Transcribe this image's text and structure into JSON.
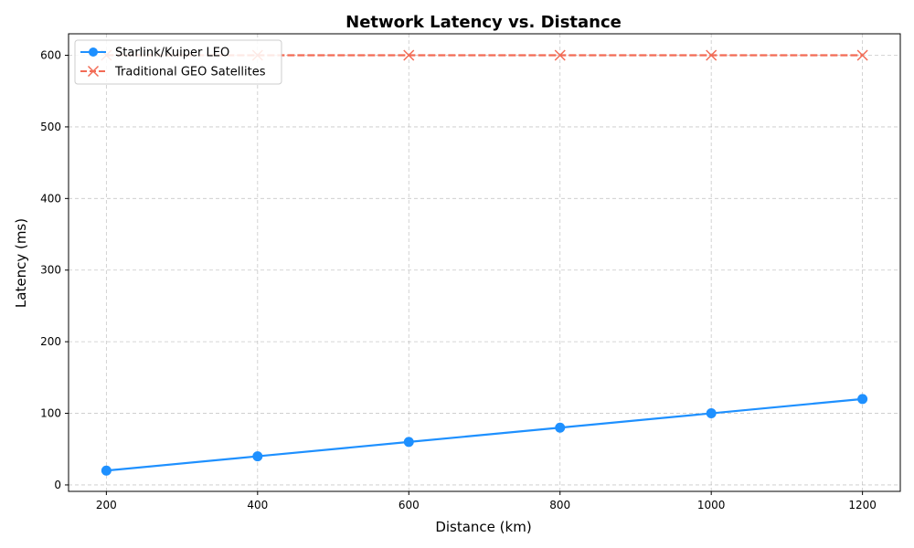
{
  "chart_data": {
    "type": "line",
    "title": "Network Latency vs. Distance",
    "xlabel": "Distance (km)",
    "ylabel": "Latency (ms)",
    "x": [
      200,
      400,
      600,
      800,
      1000,
      1200
    ],
    "xlim": [
      150,
      1250
    ],
    "ylim": [
      -9,
      630
    ],
    "xticks": [
      200,
      400,
      600,
      800,
      1000,
      1200
    ],
    "yticks": [
      0,
      100,
      200,
      300,
      400,
      500,
      600
    ],
    "grid": true,
    "legend_position": "top-left",
    "series": [
      {
        "name": "Starlink/Kuiper LEO",
        "values": [
          20,
          40,
          60,
          80,
          100,
          120
        ],
        "color": "#1e90ff",
        "marker": "circle",
        "line_style": "solid"
      },
      {
        "name": "Traditional GEO Satellites",
        "values": [
          600,
          600,
          600,
          600,
          600,
          600
        ],
        "color": "#f26b55",
        "marker": "x",
        "line_style": "dashed"
      }
    ]
  }
}
